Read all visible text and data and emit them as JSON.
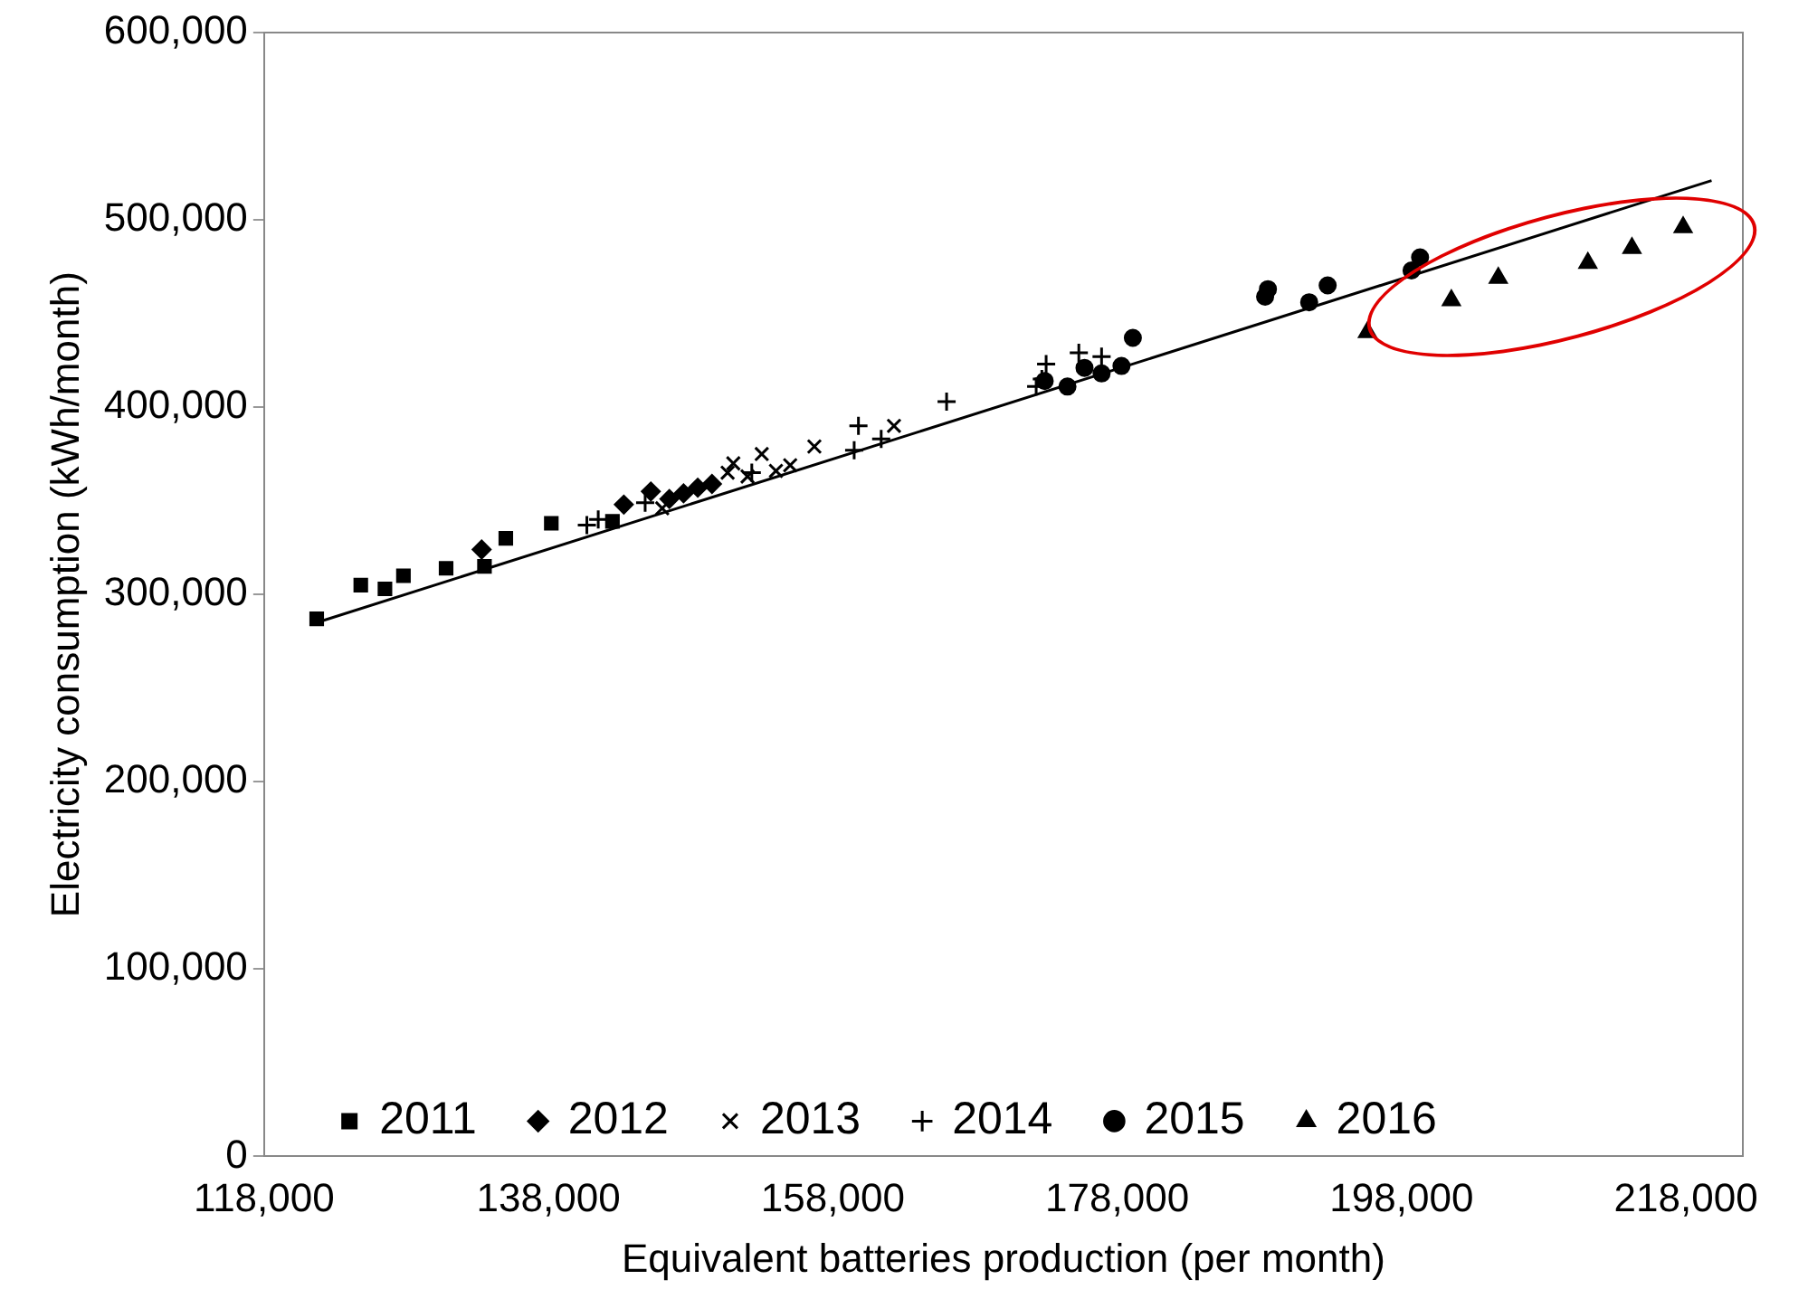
{
  "chart_data": {
    "type": "scatter",
    "xlabel": "Equivalent batteries production (per month)",
    "ylabel": "Electricity consumption (kWh/month)",
    "xlim": [
      118000,
      222000
    ],
    "xticks": [
      {
        "value": 118000,
        "label": "118,000"
      },
      {
        "value": 138000,
        "label": "138,000"
      },
      {
        "value": 158000,
        "label": "158,000"
      },
      {
        "value": 178000,
        "label": "178,000"
      },
      {
        "value": 198000,
        "label": "198,000"
      },
      {
        "value": 218000,
        "label": "218,000"
      }
    ],
    "ylim": [
      0,
      600000
    ],
    "yticks": [
      0,
      {
        "value": 100000,
        "label": "100,000"
      },
      {
        "value": 200000,
        "label": "200,000"
      },
      {
        "value": 300000,
        "label": "300,000"
      },
      {
        "value": 400000,
        "label": "400,000"
      },
      {
        "value": 500000,
        "label": "500,000"
      },
      {
        "value": 600000,
        "label": "600,000"
      }
    ],
    "grid": false,
    "legend": "bottom",
    "series": [
      {
        "name": "2011",
        "color": "#000000",
        "marker": "square",
        "x": [
          121700,
          124800,
          126500,
          127800,
          130800,
          133500,
          135000,
          138200,
          142500
        ],
        "values": [
          287000,
          305000,
          303000,
          310000,
          314000,
          315000,
          330000,
          338000,
          339000
        ]
      },
      {
        "name": "2012",
        "color": "#000000",
        "marker": "diamond",
        "x": [
          133300,
          143300,
          145200,
          146500,
          147500,
          148500,
          149500
        ],
        "values": [
          324000,
          348000,
          355000,
          351000,
          354000,
          357000,
          359000
        ]
      },
      {
        "name": "2013",
        "color": "#000000",
        "marker": "cross",
        "x": [
          146000,
          150600,
          151000,
          153000,
          154000,
          155000,
          156700,
          162300,
          152000
        ],
        "values": [
          346000,
          365000,
          370000,
          375000,
          366000,
          369000,
          379000,
          390000,
          363000
        ]
      },
      {
        "name": "2014",
        "color": "#000000",
        "marker": "plus",
        "x": [
          140700,
          141500,
          144800,
          152300,
          159500,
          159800,
          161400,
          166000,
          173000,
          172700,
          175300,
          176900,
          172300
        ],
        "values": [
          337000,
          340000,
          349000,
          365000,
          377000,
          390000,
          383000,
          403000,
          423000,
          415000,
          429000,
          427000,
          411000
        ]
      },
      {
        "name": "2015",
        "color": "#000000",
        "marker": "circle",
        "x": [
          172900,
          174500,
          175700,
          176900,
          178300,
          179100,
          188400,
          188600,
          191500,
          192800,
          198700,
          199300
        ],
        "values": [
          414000,
          411000,
          421000,
          418000,
          422000,
          437000,
          459000,
          463000,
          456000,
          465000,
          473000,
          480000
        ]
      },
      {
        "name": "2016",
        "color": "#000000",
        "marker": "triangle",
        "x": [
          195600,
          201500,
          204800,
          211100,
          214200,
          217800
        ],
        "values": [
          440000,
          457000,
          469000,
          477000,
          485000,
          496000
        ]
      },
      {
        "type": "line",
        "color": "#000000",
        "marker": "none",
        "x": [
          121700,
          219800
        ],
        "values": [
          285000,
          521000
        ]
      }
    ]
  }
}
